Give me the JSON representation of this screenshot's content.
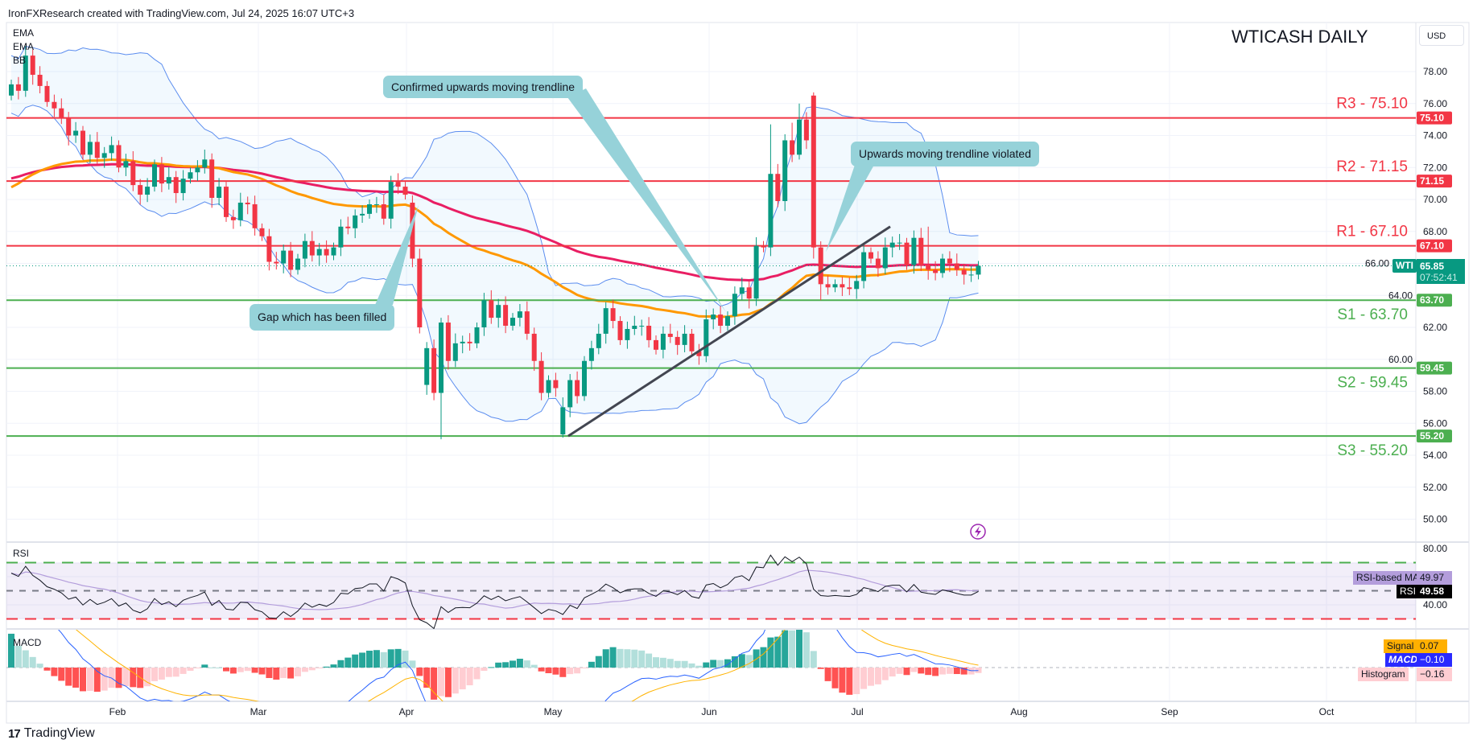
{
  "header": {
    "attribution": "IronFXResearch created with TradingView.com, Jul 24, 2025 16:07 UTC+3"
  },
  "chart": {
    "symbol_title": "WTICASH DAILY",
    "currency": "USD",
    "legend": [
      "EMA",
      "EMA",
      "BB"
    ]
  },
  "price_axis": {
    "ticks": [
      "78.00",
      "76.00",
      "74.00",
      "72.00",
      "70.00",
      "68.00",
      "66.00",
      "64.00",
      "62.00",
      "60.00",
      "58.00",
      "56.00",
      "54.00",
      "52.00",
      "50.00"
    ]
  },
  "levels": [
    {
      "name": "R3",
      "value": 75.1,
      "price_label": "75.10",
      "label": "R3 - 75.10",
      "kind": "resistance"
    },
    {
      "name": "R2",
      "value": 71.15,
      "price_label": "71.15",
      "label": "R2 - 71.15",
      "kind": "resistance"
    },
    {
      "name": "R1",
      "value": 67.1,
      "price_label": "67.10",
      "label": "R1 - 67.10",
      "kind": "resistance"
    },
    {
      "name": "S1",
      "value": 63.7,
      "price_label": "63.70",
      "label": "S1 - 63.70",
      "kind": "support"
    },
    {
      "name": "S2",
      "value": 59.45,
      "price_label": "59.45",
      "label": "S2 - 59.45",
      "kind": "support"
    },
    {
      "name": "S3",
      "value": 55.2,
      "price_label": "55.20",
      "label": "S3 - 55.20",
      "kind": "support"
    }
  ],
  "last_price": {
    "symbol": "WTI",
    "price": "65.85",
    "value": 65.85,
    "countdown": "07:52:41"
  },
  "annotations": [
    {
      "text": "Confirmed upwards moving trendline"
    },
    {
      "text": "Gap which has been filled"
    },
    {
      "text": "Upwards moving trendline violated"
    }
  ],
  "trendline": {
    "from_price": 55.2,
    "to_price": 68.3
  },
  "rsi": {
    "title": "RSI",
    "ticks": [
      "80.00",
      "40.00"
    ],
    "ma_label": "RSI-based MA",
    "ma_value": "49.97",
    "label": "RSI",
    "value": "49.58",
    "upper": 70,
    "middle": 50,
    "lower": 30
  },
  "macd": {
    "title": "MACD",
    "signal_label": "Signal",
    "signal_value": "0.07",
    "macd_label": "MACD",
    "macd_value": "−0.10",
    "hist_label": "Histogram",
    "hist_value": "−0.16"
  },
  "time_axis": {
    "labels": [
      "Feb",
      "Mar",
      "Apr",
      "May",
      "Jun",
      "Jul",
      "Aug",
      "Sep",
      "Oct"
    ]
  },
  "footer": {
    "logo_text": "TradingView"
  },
  "colors": {
    "up": "#089981",
    "down": "#f23645",
    "resistance": "#f23645",
    "support": "#4caf50",
    "ema_fast": "#ff9800",
    "ema_slow": "#e91e63",
    "bb": "#5b8def",
    "callout": "#96d2d9",
    "trendline": "#434651",
    "rsi_line": "#131722",
    "rsi_ma": "#b39ddb",
    "macd_line": "#2962ff",
    "signal_line": "#ffb300"
  },
  "chart_data": {
    "type": "candlestick",
    "symbol": "WTICASH",
    "interval": "Daily",
    "ylim": [
      49,
      80
    ],
    "close": [
      77.2,
      76.8,
      79.0,
      77.8,
      77.1,
      76.1,
      75.7,
      75.1,
      74.0,
      74.3,
      72.8,
      73.6,
      72.6,
      72.9,
      73.4,
      72.0,
      72.4,
      70.9,
      70.3,
      70.8,
      72.2,
      71.0,
      71.4,
      70.4,
      71.3,
      71.7,
      72.0,
      72.5,
      70.1,
      70.8,
      68.9,
      68.7,
      69.8,
      69.7,
      68.2,
      67.7,
      66.1,
      66.0,
      66.8,
      65.6,
      66.3,
      67.4,
      66.5,
      66.9,
      66.5,
      67.0,
      68.3,
      68.2,
      69.0,
      69.1,
      69.7,
      69.7,
      68.8,
      71.1,
      70.8,
      70.3,
      66.3,
      62.0,
      60.7,
      57.9,
      62.3,
      59.9,
      61.0,
      61.1,
      61.0,
      62.0,
      63.7,
      62.6,
      63.4,
      62.1,
      62.6,
      63.0,
      61.6,
      59.9,
      57.9,
      58.7,
      58.2,
      57.0,
      58.7,
      57.7,
      59.9,
      60.7,
      61.6,
      63.2,
      62.4,
      61.2,
      61.9,
      62.1,
      62.1,
      61.2,
      60.6,
      61.6,
      61.4,
      60.9,
      61.6,
      60.5,
      60.2,
      62.5,
      62.8,
      62.1,
      62.7,
      64.1,
      64.5,
      63.8,
      67.1,
      67.0,
      71.6,
      69.9,
      73.7,
      72.8,
      75.0,
      73.7,
      67.0,
      64.7,
      64.5,
      64.7,
      64.5,
      64.4,
      64.9,
      66.7,
      66.3,
      65.7,
      67.0,
      67.3,
      67.3,
      65.9,
      67.6,
      65.9,
      65.6,
      65.4,
      66.3,
      66.0,
      65.6,
      65.3,
      65.3,
      65.85
    ],
    "open_overrides": {
      "0": 76.5,
      "56": 69.8,
      "58": 58.4,
      "77": 55.3,
      "112": 76.5
    },
    "high_overrides": {
      "2": 79.6,
      "106": 74.7,
      "109": 74.8,
      "110": 76.0,
      "112": 76.7,
      "128": 68.3
    },
    "low_overrides": {
      "60": 55.0,
      "77": 55.1,
      "112": 66.3,
      "113": 63.7
    },
    "indicators": {
      "ema_fast_period": 50,
      "ema_slow_period": 100,
      "ema_fast_start": 70.5,
      "ema_slow_start": 71.2,
      "bb_period": 20,
      "bb_mult": 2,
      "rsi_period": 14,
      "macd": [
        12,
        26,
        9
      ]
    }
  }
}
